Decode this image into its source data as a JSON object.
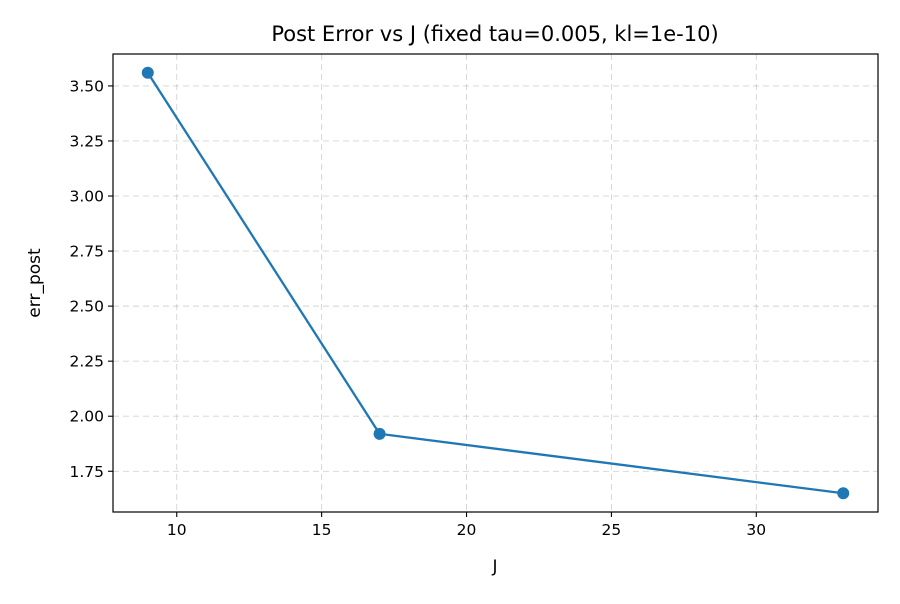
{
  "chart_data": {
    "type": "line",
    "title": "Post Error vs J (fixed tau=0.005, kl=1e-10)",
    "xlabel": "J",
    "ylabel": "err_post",
    "xlim": [
      7.8,
      34.2
    ],
    "ylim": [
      1.565,
      3.645
    ],
    "xticks": [
      10,
      15,
      20,
      25,
      30
    ],
    "yticks": [
      1.75,
      2.0,
      2.25,
      2.5,
      2.75,
      3.0,
      3.25,
      3.5
    ],
    "xtick_labels": [
      "10",
      "15",
      "20",
      "25",
      "30"
    ],
    "ytick_labels": [
      "1.75",
      "2.00",
      "2.25",
      "2.50",
      "2.75",
      "3.00",
      "3.25",
      "3.50"
    ],
    "grid": true,
    "series": [
      {
        "x": [
          9,
          17,
          33
        ],
        "y": [
          3.56,
          1.92,
          1.65
        ],
        "color": "#1f77b4",
        "marker": "circle"
      }
    ]
  }
}
